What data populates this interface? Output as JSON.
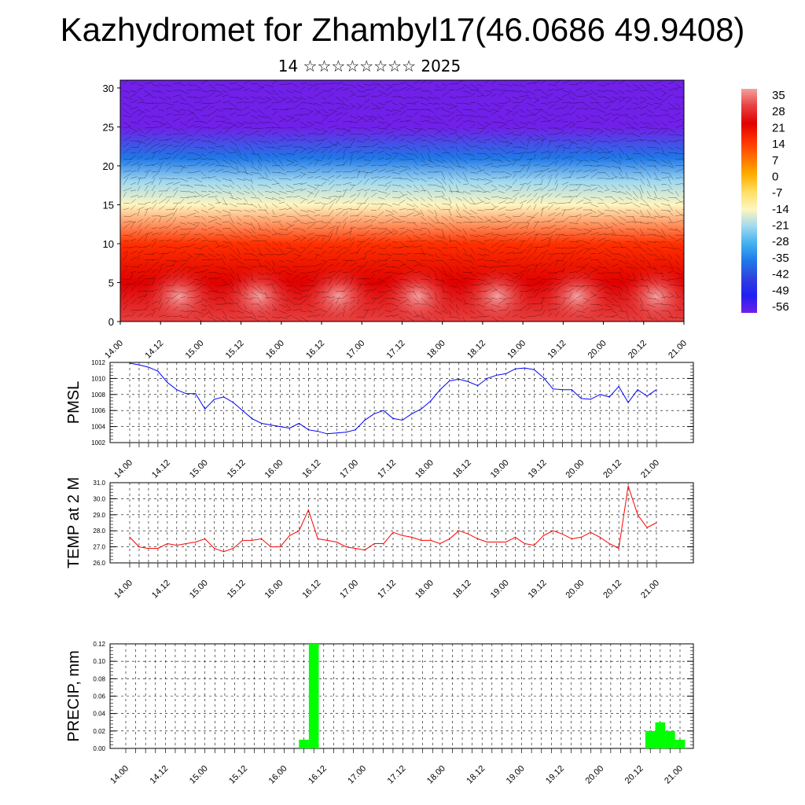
{
  "title": "Kazhydromet for Zhambyl17(46.0686 49.9408)",
  "subtitle": "14 ☆☆☆☆☆☆☆☆ 2025",
  "chart_data": [
    {
      "type": "heatmap",
      "xlabel": "",
      "ylabel": "",
      "x_tick_labels": [
        "14.00",
        "14.12",
        "15.00",
        "15.12",
        "16.00",
        "16.12",
        "17.00",
        "17.12",
        "18.00",
        "18.12",
        "19.00",
        "19.12",
        "20.00",
        "20.12",
        "21.00"
      ],
      "y_ticks": [
        0,
        5,
        10,
        15,
        20,
        25,
        30
      ],
      "ylim": [
        0,
        31
      ],
      "colorbar_labels": [
        "35",
        "28",
        "21",
        "14",
        "7",
        "0",
        "-7",
        "-14",
        "-21",
        "-28",
        "-35",
        "-42",
        "-49",
        "-56"
      ],
      "colorbar_values": [
        35,
        28,
        21,
        14,
        7,
        0,
        -7,
        -14,
        -21,
        -28,
        -35,
        -42,
        -49,
        -56
      ],
      "colorbar_colors": [
        "#f4a0a0",
        "#e84040",
        "#e00000",
        "#ff3000",
        "#ff7000",
        "#ffb000",
        "#ffe066",
        "#fff6c0",
        "#9fd8f0",
        "#40b0f0",
        "#2078e8",
        "#3040e0",
        "#2020f0",
        "#7020e8"
      ],
      "profile": [
        {
          "y": 0,
          "value": 28
        },
        {
          "y": 5,
          "value": 24
        },
        {
          "y": 10,
          "value": 14
        },
        {
          "y": 15,
          "value": -8
        },
        {
          "y": 18,
          "value": -20
        },
        {
          "y": 21,
          "value": -34
        },
        {
          "y": 25,
          "value": -52
        },
        {
          "y": 28,
          "value": -58
        },
        {
          "y": 31,
          "value": -60
        }
      ],
      "wind_vectors": true
    },
    {
      "type": "line",
      "ylabel": "PMSL",
      "ylim": [
        1002,
        1012
      ],
      "y_ticks": [
        1002,
        1004,
        1006,
        1008,
        1010,
        1012
      ],
      "x_tick_labels": [
        "14.00",
        "14.12",
        "15.00",
        "15.12",
        "16.00",
        "16.12",
        "17.00",
        "17.12",
        "18.00",
        "18.12",
        "19.00",
        "19.12",
        "20.00",
        "20.12",
        "21.00"
      ],
      "grid": true,
      "color": "#0000ff",
      "series": [
        {
          "values": [
            1011.9,
            1011.7,
            1011.4,
            1010.9,
            1009.5,
            1008.6,
            1008.1,
            1008.1,
            1006.2,
            1007.4,
            1007.7,
            1007.0,
            1006.0,
            1005.0,
            1004.4,
            1004.2,
            1004.0,
            1003.8,
            1004.4,
            1003.6,
            1003.4,
            1003.1,
            1003.2,
            1003.3,
            1003.6,
            1004.8,
            1005.6,
            1006.0,
            1005.0,
            1004.8,
            1005.6,
            1006.2,
            1007.2,
            1008.6,
            1009.7,
            1009.9,
            1009.6,
            1009.1,
            1010.0,
            1010.4,
            1010.6,
            1011.2,
            1011.3,
            1011.1,
            1010.1,
            1008.7,
            1008.6,
            1008.6,
            1007.5,
            1007.4,
            1008.0,
            1007.7,
            1009.0,
            1007.0,
            1008.6,
            1007.8,
            1008.6
          ]
        }
      ]
    },
    {
      "type": "line",
      "ylabel": "TEMP at 2 M",
      "ylim": [
        26.0,
        31.0
      ],
      "y_ticks": [
        26.0,
        27.0,
        28.0,
        29.0,
        30.0,
        31.0
      ],
      "y_tick_labels": [
        "26.0",
        "27.0",
        "28.0",
        "29.0",
        "30.0",
        "31.0"
      ],
      "x_tick_labels": [
        "14.00",
        "14.12",
        "15.00",
        "15.12",
        "16.00",
        "16.12",
        "17.00",
        "17.12",
        "18.00",
        "18.12",
        "19.00",
        "19.12",
        "20.00",
        "20.12",
        "21.00"
      ],
      "grid": true,
      "color": "#ff0000",
      "series": [
        {
          "values": [
            27.6,
            27.0,
            26.9,
            26.9,
            27.2,
            27.1,
            27.2,
            27.3,
            27.5,
            26.9,
            26.7,
            26.9,
            27.4,
            27.4,
            27.5,
            27.0,
            27.0,
            27.7,
            28.0,
            29.3,
            27.5,
            27.4,
            27.3,
            27.0,
            26.9,
            26.8,
            27.2,
            27.2,
            27.9,
            27.7,
            27.6,
            27.4,
            27.4,
            27.2,
            27.5,
            28.0,
            27.8,
            27.5,
            27.3,
            27.3,
            27.3,
            27.6,
            27.2,
            27.1,
            27.7,
            28.0,
            27.8,
            27.5,
            27.6,
            27.9,
            27.6,
            27.2,
            26.9,
            30.8,
            29.0,
            28.2,
            28.5
          ]
        }
      ]
    },
    {
      "type": "bar",
      "ylabel": "PRECIP, mm",
      "ylim": [
        0.0,
        0.12
      ],
      "y_ticks": [
        0.0,
        0.02,
        0.04,
        0.06,
        0.08,
        0.1,
        0.12
      ],
      "y_tick_labels": [
        "0.00",
        "0.02",
        "0.04",
        "0.06",
        "0.08",
        "0.10",
        "0.12"
      ],
      "x_tick_labels": [
        "14.00",
        "14.12",
        "15.00",
        "15.12",
        "16.00",
        "16.12",
        "17.00",
        "17.12",
        "18.00",
        "18.12",
        "19.00",
        "19.12",
        "20.00",
        "20.12",
        "21.00"
      ],
      "grid": true,
      "color": "#00ff00",
      "bars": [
        {
          "index": 18,
          "value": 0.01
        },
        {
          "index": 19,
          "value": 0.12
        },
        {
          "index": 53,
          "value": 0.02
        },
        {
          "index": 54,
          "value": 0.03
        },
        {
          "index": 55,
          "value": 0.02
        },
        {
          "index": 56,
          "value": 0.01
        }
      ]
    }
  ]
}
